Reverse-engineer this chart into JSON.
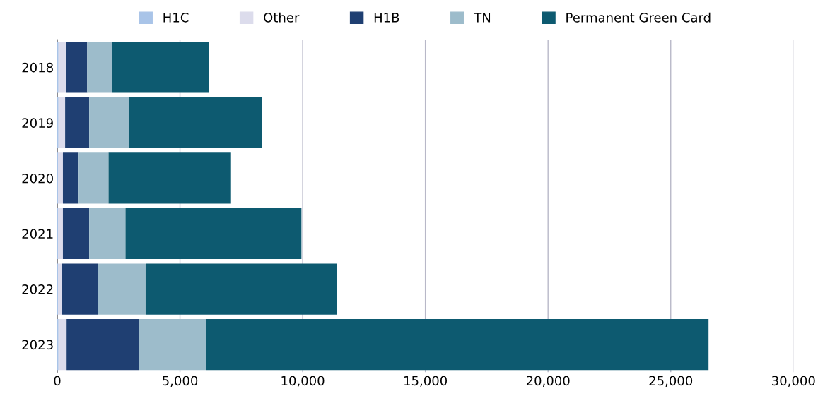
{
  "chart_data": {
    "type": "bar",
    "orientation": "horizontal",
    "stacked": true,
    "categories": [
      "2018",
      "2019",
      "2020",
      "2021",
      "2022",
      "2023"
    ],
    "series": [
      {
        "name": "H1C",
        "color": "#a9c4e8",
        "values": [
          50,
          50,
          30,
          30,
          30,
          50
        ]
      },
      {
        "name": "Other",
        "color": "#dcdcec",
        "values": [
          300,
          270,
          200,
          200,
          170,
          330
        ]
      },
      {
        "name": "H1B",
        "color": "#1f3f72",
        "values": [
          870,
          980,
          640,
          1070,
          1450,
          2960
        ]
      },
      {
        "name": "TN",
        "color": "#9dbccb",
        "values": [
          1010,
          1630,
          1220,
          1480,
          1950,
          2720
        ]
      },
      {
        "name": "Permanent Green Card",
        "color": "#0d5a70",
        "values": [
          3950,
          5420,
          4990,
          7170,
          7800,
          20480
        ]
      }
    ],
    "xlim": [
      0,
      30000
    ],
    "xticks": [
      {
        "value": 0,
        "label": "0"
      },
      {
        "value": 5000,
        "label": "5,000"
      },
      {
        "value": 10000,
        "label": "10,000"
      },
      {
        "value": 15000,
        "label": "15,000"
      },
      {
        "value": 20000,
        "label": "20,000"
      },
      {
        "value": 25000,
        "label": "25,000"
      },
      {
        "value": 30000,
        "label": "30,000"
      }
    ],
    "grid": "x",
    "legend": "top"
  }
}
